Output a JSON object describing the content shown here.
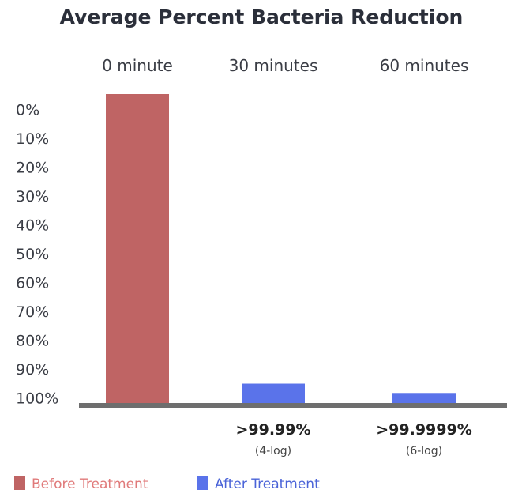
{
  "chart_data": {
    "type": "bar",
    "title": "Average Percent Bacteria Reduction",
    "categories": [
      "0 minute",
      "30 minutes",
      "60 minutes"
    ],
    "y_ticks": [
      "0%",
      "10%",
      "20%",
      "30%",
      "40%",
      "50%",
      "60%",
      "70%",
      "80%",
      "90%",
      "100%"
    ],
    "ylim": [
      0,
      100
    ],
    "y_inverted": true,
    "series": [
      {
        "name": "Before Treatment",
        "color": "#bf6464",
        "values": [
          100,
          null,
          null
        ]
      },
      {
        "name": "After Treatment",
        "color": "#5a73ea",
        "values": [
          null,
          6.5,
          3.5
        ]
      }
    ],
    "data_labels": [
      {
        "category": "30 minutes",
        "main": ">99.99%",
        "sub": "(4-log)"
      },
      {
        "category": "60 minutes",
        "main": ">99.9999%",
        "sub": "(6-log)"
      }
    ],
    "legend": {
      "placement": "bottom-left",
      "entries": [
        {
          "label": "Before Treatment",
          "color": "#bf6464",
          "text_color": "#e07a7a"
        },
        {
          "label": "After Treatment",
          "color": "#5a73ea",
          "text_color": "#4a63d8"
        }
      ]
    },
    "baseline_color": "#6e6e6e"
  }
}
